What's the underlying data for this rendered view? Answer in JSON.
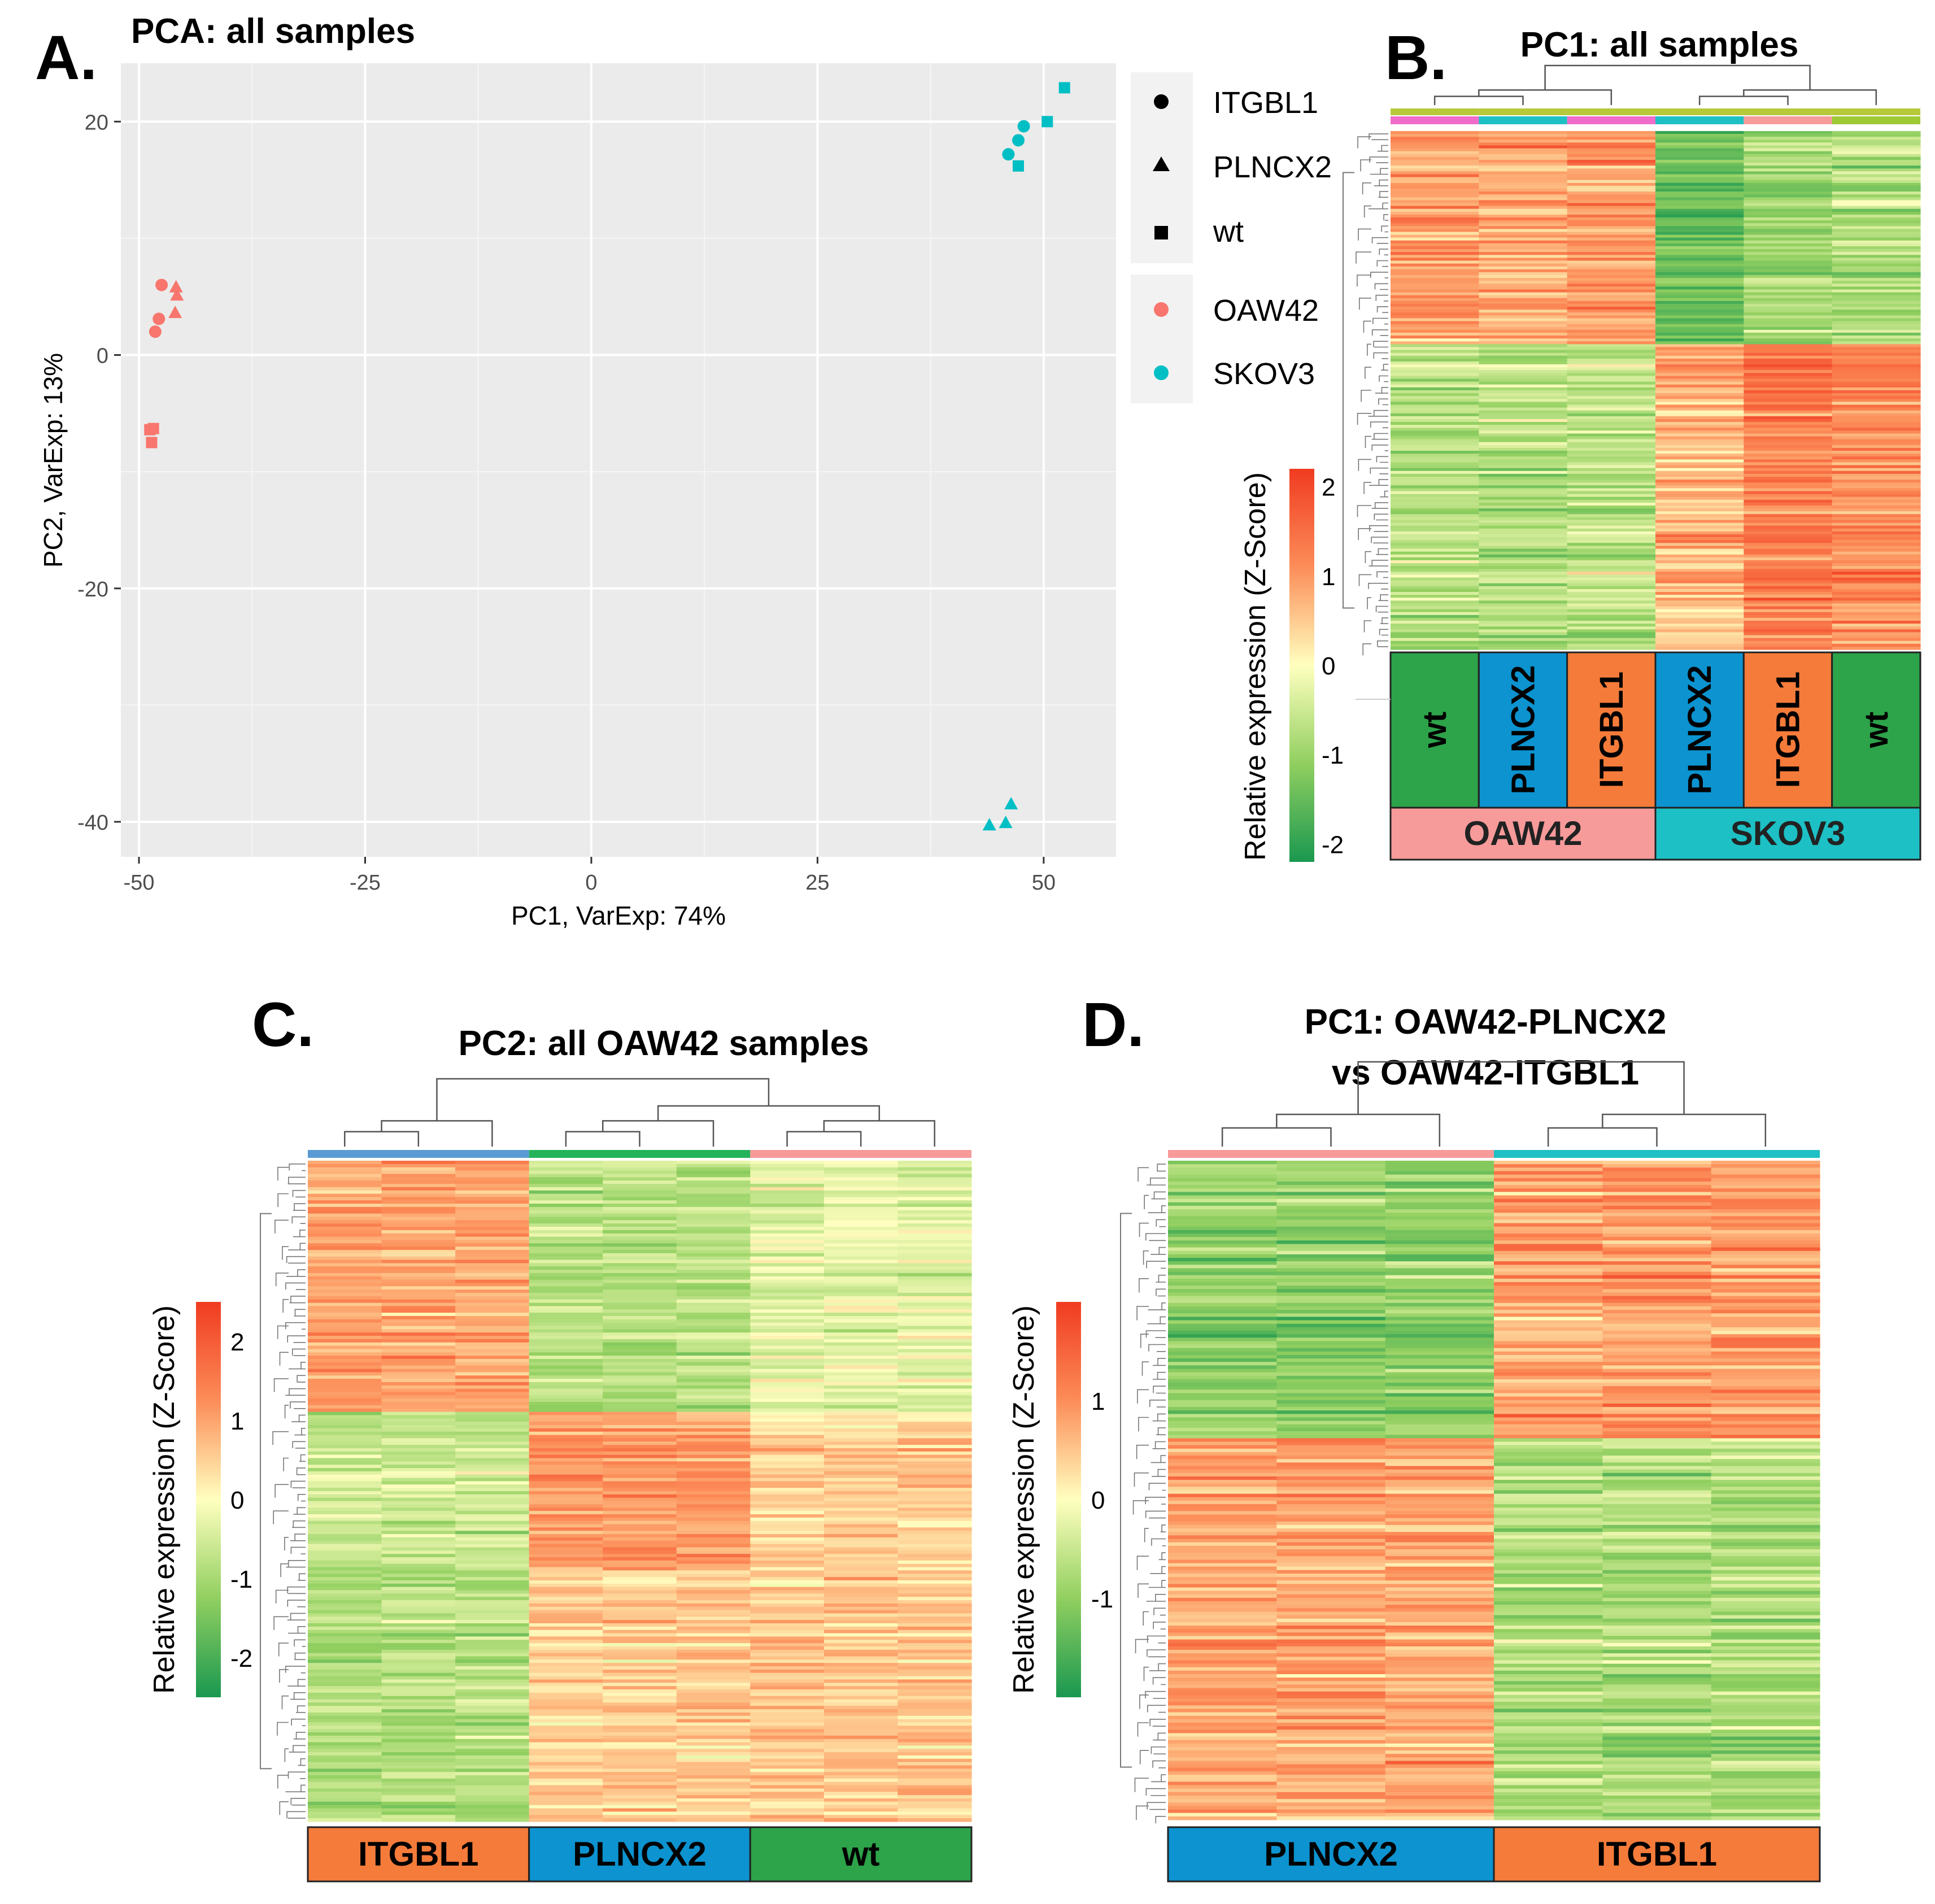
{
  "figure": {
    "panel_labels": [
      "A.",
      "B.",
      "C.",
      "D."
    ]
  },
  "colors": {
    "oaw42": "#F8766D",
    "skov3": "#00BFC4",
    "itgbl1": "#F47B3A",
    "plncx2": "#0C93D0",
    "wt": "#2DA34A",
    "oaw42_bar": "#F79A9A",
    "skov3_bar": "#1DC0C4",
    "panel_bg": "#EBEBEB",
    "green_low": "#1A9850",
    "yellow_mid": "#FFFFBF",
    "red_high": "#F03B20"
  },
  "chart_data": [
    {
      "id": "A",
      "type": "scatter",
      "title": "PCA: all samples",
      "xlabel": "PC1, VarExp: 74%",
      "ylabel": "PC2, VarExp: 13%",
      "xlim": [
        -52,
        58
      ],
      "ylim": [
        -43,
        25
      ],
      "xticks": [
        -50,
        -25,
        0,
        25,
        50
      ],
      "yticks": [
        -40,
        -20,
        0,
        20
      ],
      "xtick_labels": [
        "-50",
        "-25",
        "0",
        "25",
        "50"
      ],
      "ytick_labels": [
        "-40",
        "-20",
        "0",
        "20"
      ],
      "legend": {
        "shape_entries": [
          {
            "label": "ITGBL1",
            "shape": "circle"
          },
          {
            "label": "PLNCX2",
            "shape": "triangle"
          },
          {
            "label": "wt",
            "shape": "square"
          }
        ],
        "color_entries": [
          {
            "label": "OAW42",
            "color": "#F8766D"
          },
          {
            "label": "SKOV3",
            "color": "#00BFC4"
          }
        ]
      },
      "points": [
        {
          "x": -47.5,
          "y": 6.0,
          "cell": "OAW42",
          "type": "ITGBL1"
        },
        {
          "x": -47.8,
          "y": 3.1,
          "cell": "OAW42",
          "type": "ITGBL1"
        },
        {
          "x": -48.2,
          "y": 2.0,
          "cell": "OAW42",
          "type": "ITGBL1"
        },
        {
          "x": -45.9,
          "y": 5.8,
          "cell": "OAW42",
          "type": "PLNCX2"
        },
        {
          "x": -45.8,
          "y": 5.1,
          "cell": "OAW42",
          "type": "PLNCX2"
        },
        {
          "x": -46.0,
          "y": 3.6,
          "cell": "OAW42",
          "type": "PLNCX2"
        },
        {
          "x": -48.8,
          "y": -6.4,
          "cell": "OAW42",
          "type": "wt"
        },
        {
          "x": -48.4,
          "y": -6.3,
          "cell": "OAW42",
          "type": "wt"
        },
        {
          "x": -48.6,
          "y": -7.5,
          "cell": "OAW42",
          "type": "wt"
        },
        {
          "x": 46.1,
          "y": 17.2,
          "cell": "SKOV3",
          "type": "ITGBL1"
        },
        {
          "x": 47.2,
          "y": 18.4,
          "cell": "SKOV3",
          "type": "ITGBL1"
        },
        {
          "x": 47.8,
          "y": 19.6,
          "cell": "SKOV3",
          "type": "ITGBL1"
        },
        {
          "x": 44.0,
          "y": -40.3,
          "cell": "SKOV3",
          "type": "PLNCX2"
        },
        {
          "x": 45.8,
          "y": -40.1,
          "cell": "SKOV3",
          "type": "PLNCX2"
        },
        {
          "x": 46.4,
          "y": -38.5,
          "cell": "SKOV3",
          "type": "PLNCX2"
        },
        {
          "x": 47.2,
          "y": 16.2,
          "cell": "SKOV3",
          "type": "wt"
        },
        {
          "x": 50.4,
          "y": 20.0,
          "cell": "SKOV3",
          "type": "wt"
        },
        {
          "x": 52.3,
          "y": 22.9,
          "cell": "SKOV3",
          "type": "wt"
        }
      ]
    },
    {
      "id": "B",
      "type": "heatmap",
      "title": "PC1: all samples",
      "colorbar_label": "Relative expression (Z-Score)",
      "colorbar_range": [
        -2,
        2
      ],
      "colorbar_ticks": [
        "2",
        "1",
        "0",
        "-1",
        "-2"
      ],
      "sample_groups": [
        "wt",
        "PLNCX2",
        "ITGBL1",
        "PLNCX2",
        "ITGBL1",
        "wt"
      ],
      "cell_lines": [
        "OAW42",
        "SKOV3"
      ],
      "cell_line_spans": [
        3,
        3
      ],
      "top_bar_groups": [
        "OAW42",
        "SKOV3"
      ],
      "row_split_fraction": 0.41,
      "block_means": [
        [
          0.9,
          0.8,
          0.9,
          -1.3,
          -0.8,
          -0.7
        ],
        [
          -0.7,
          -0.7,
          -0.6,
          0.6,
          1.2,
          1.0
        ]
      ]
    },
    {
      "id": "C",
      "type": "heatmap",
      "title": "PC2: all OAW42 samples",
      "colorbar_label": "Relative expression (Z-Score)",
      "colorbar_range": [
        -2.5,
        2.5
      ],
      "colorbar_ticks": [
        "2",
        "1",
        "0",
        "-1",
        "-2"
      ],
      "sample_groups": [
        "ITGBL1",
        "PLNCX2",
        "wt"
      ],
      "replicates": 3,
      "row_split_fractions": [
        0.38,
        0.62
      ],
      "block_means": [
        [
          1.0,
          -0.8,
          -0.3
        ],
        [
          -0.6,
          1.1,
          0.5
        ],
        [
          -0.9,
          0.5,
          0.6
        ]
      ]
    },
    {
      "id": "D",
      "type": "heatmap",
      "title_line1": "PC1: OAW42-PLNCX2",
      "title_line2": "vs OAW42-ITGBL1",
      "colorbar_label": "Relative expression (Z-Score)",
      "colorbar_range": [
        -2,
        2
      ],
      "colorbar_ticks": [
        "1",
        "0",
        "-1"
      ],
      "sample_groups": [
        "PLNCX2",
        "ITGBL1"
      ],
      "replicates": 3,
      "row_split_fractions": [
        0.42
      ],
      "block_means": [
        [
          -1.0,
          0.9
        ],
        [
          0.8,
          -0.7
        ]
      ]
    }
  ]
}
